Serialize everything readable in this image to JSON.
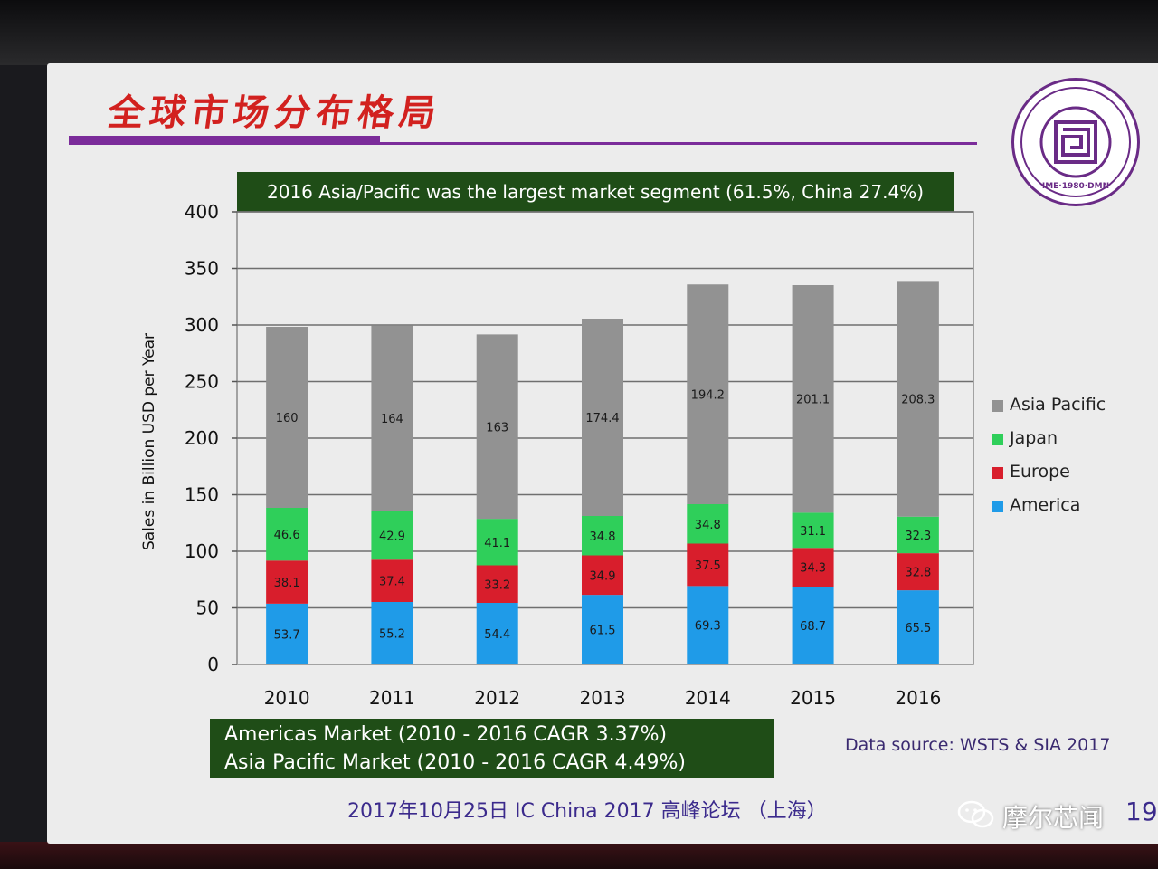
{
  "slide": {
    "title": "全球市场分布格局",
    "headline": "2016 Asia/Pacific was the largest market segment (61.5%, China 27.4%)",
    "cagr_lines": [
      "Americas Market (2010 - 2016 CAGR 3.37%)",
      "Asia Pacific Market (2010 - 2016 CAGR 4.49%)"
    ],
    "source": "Data source: WSTS & SIA 2017",
    "footer": "2017年10月25日 IC China 2017 高峰论坛 （上海）",
    "seal_text": "IME·1980·DMN",
    "page_number": "19",
    "brand": {
      "name": "摩尔芯闻",
      "icon": "wechat-icon"
    }
  },
  "chart_data": {
    "type": "bar",
    "stacked": true,
    "categories": [
      "2010",
      "2011",
      "2012",
      "2013",
      "2014",
      "2015",
      "2016"
    ],
    "series": [
      {
        "name": "America",
        "color": "#1f9be8",
        "values": [
          53.7,
          55.2,
          54.4,
          61.5,
          69.3,
          68.7,
          65.5
        ],
        "labels": [
          "53.7",
          "55.2",
          "54.4",
          "61.5",
          "69.3",
          "68.7",
          "65.5"
        ]
      },
      {
        "name": "Europe",
        "color": "#d81e2c",
        "values": [
          38.1,
          37.4,
          33.2,
          34.9,
          37.5,
          34.3,
          32.8
        ],
        "labels": [
          "38.1",
          "37.4",
          "33.2",
          "34.9",
          "37.5",
          "34.3",
          "32.8"
        ]
      },
      {
        "name": "Japan",
        "color": "#2fcf5a",
        "values": [
          46.6,
          42.9,
          41.1,
          34.8,
          34.8,
          31.1,
          32.3
        ],
        "labels": [
          "46.6",
          "42.9",
          "41.1",
          "34.8",
          "34.8",
          "31.1",
          "32.3"
        ]
      },
      {
        "name": "Asia Pacific",
        "color": "#929292",
        "values": [
          160,
          164,
          163,
          174.4,
          194.2,
          201.1,
          208.3
        ],
        "labels": [
          "160",
          "164",
          "163",
          "174.4",
          "194.2",
          "201.1",
          "208.3"
        ]
      }
    ],
    "legend_order": [
      "Asia Pacific",
      "Japan",
      "Europe",
      "America"
    ],
    "legend_position": "right",
    "ylabel": "Sales in Billion USD per Year",
    "xlabel": "",
    "ylim": [
      0,
      400
    ],
    "yticks": [
      "0",
      "50",
      "100",
      "150",
      "200",
      "250",
      "300",
      "350",
      "400"
    ],
    "grid": true
  }
}
